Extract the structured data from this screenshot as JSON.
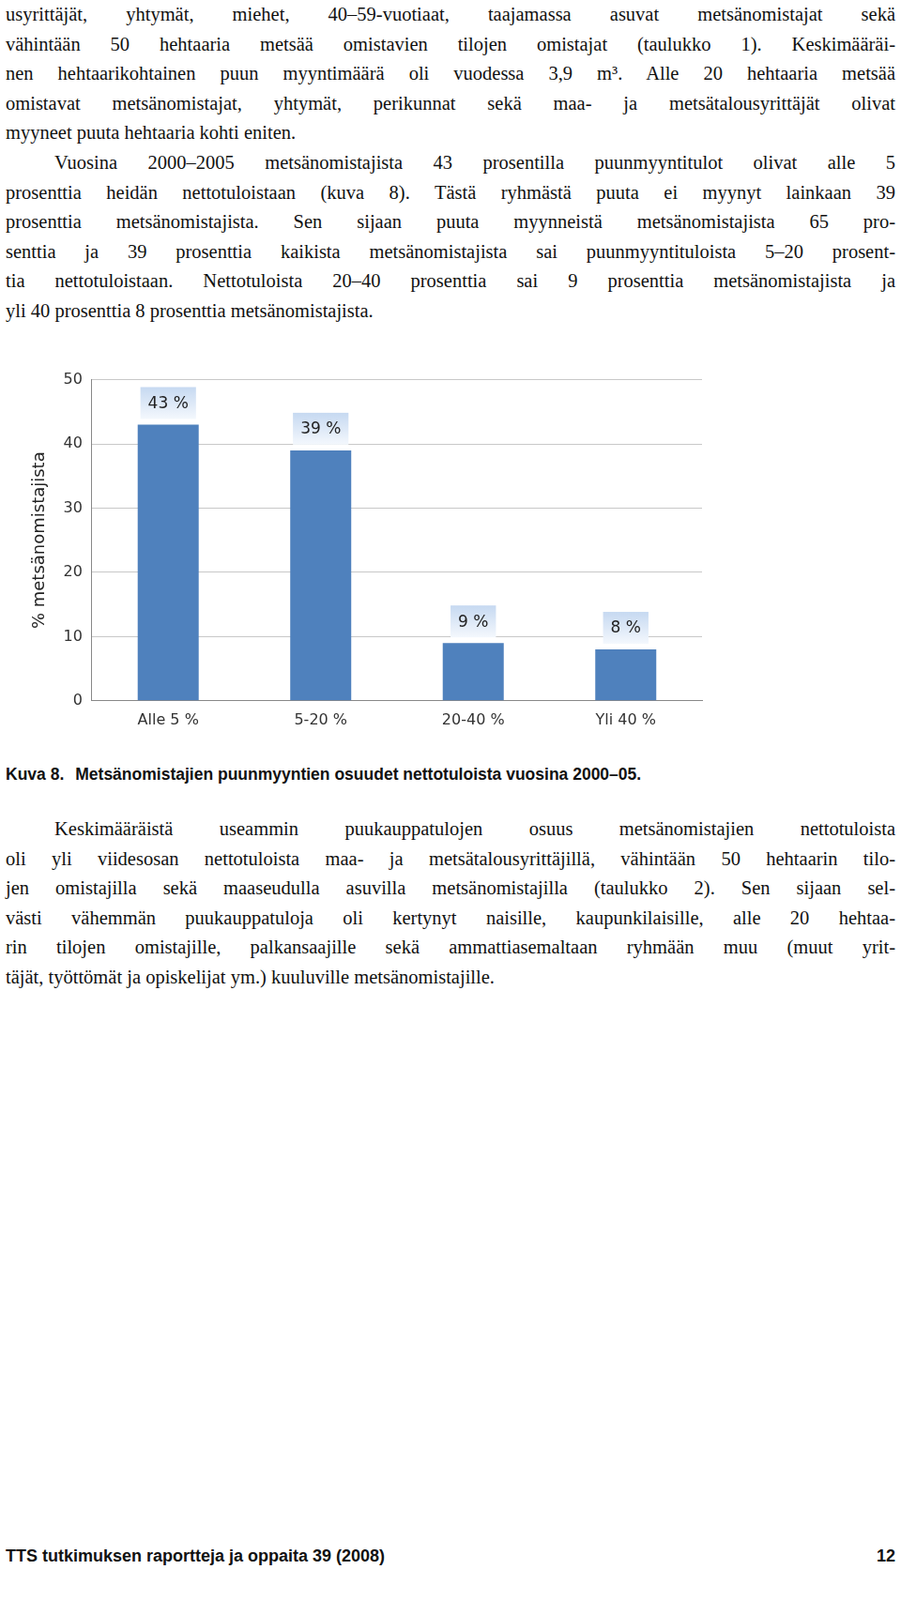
{
  "text_top": [
    [
      "usyrittäjät, yhtymät, miehet, 40–59-vuotiaat, taajamassa asuvat metsänomistajat sekä",
      "vähintään 50 hehtaaria metsää omistavien tilojen omistajat (taulukko 1). Keskimääräi-",
      "nen hehtaarikohtainen puun myyntimäärä oli vuodessa 3,9 m³. Alle 20 hehtaaria metsää",
      "omistavat metsänomistajat, yhtymät, perikunnat sekä maa- ja metsätalousyrittäjät olivat",
      "myyneet puuta hehtaaria kohti eniten."
    ],
    [
      "Vuosina 2000–2005 metsänomistajista 43 prosentilla puunmyyntitulot olivat alle 5",
      "prosenttia heidän nettotuloistaan (kuva 8). Tästä ryhmästä puuta ei myynyt lainkaan 39",
      "prosenttia metsänomistajista. Sen sijaan puuta myynneistä metsänomistajista 65 pro-",
      "senttia ja 39 prosenttia kaikista metsänomistajista sai puunmyyntituloista 5–20 prosent-",
      "tia nettotuloistaan. Nettotuloista 20–40 prosenttia sai 9 prosenttia metsänomistajista ja",
      "yli 40 prosenttia 8 prosenttia metsänomistajista."
    ]
  ],
  "chart_data": {
    "type": "bar",
    "y_label": "% metsänomistajista",
    "categories": [
      "Alle 5 %",
      "5-20 %",
      "20-40 %",
      "Yli 40 %"
    ],
    "values": [
      43,
      39,
      9,
      8
    ],
    "value_labels": [
      "43 %",
      "39 %",
      "9 %",
      "8 %"
    ],
    "data_labels": true,
    "color": "#4f81bd",
    "ylim": [
      0,
      50
    ],
    "yticks": [
      0,
      10,
      20,
      30,
      40,
      50
    ],
    "grid": true
  },
  "caption": {
    "number": "Kuva 8.",
    "title": "Metsänomistajien puunmyyntien osuudet nettotuloista vuosina 2000–05."
  },
  "text_bottom": [
    [
      "Keskimääräistä useammin puukauppatulojen osuus metsänomistajien nettotuloista",
      "oli yli viidesosan nettotuloista maa- ja metsätalousyrittäjillä, vähintään 50 hehtaarin tilo-",
      "jen omistajilla sekä maaseudulla asuvilla metsänomistajilla (taulukko 2). Sen sijaan sel-",
      "västi vähemmän puukauppatuloja oli kertynyt naisille, kaupunkilaisille, alle 20 hehtaa-",
      "rin tilojen omistajille, palkansaajille sekä ammattiasemaltaan ryhmään muu (muut yrit-",
      "täjät, työttömät ja opiskelijat ym.) kuuluville metsänomistajille."
    ]
  ],
  "footer": {
    "left": "TTS tutkimuksen raportteja ja oppaita 39 (2008)",
    "right": "12"
  }
}
